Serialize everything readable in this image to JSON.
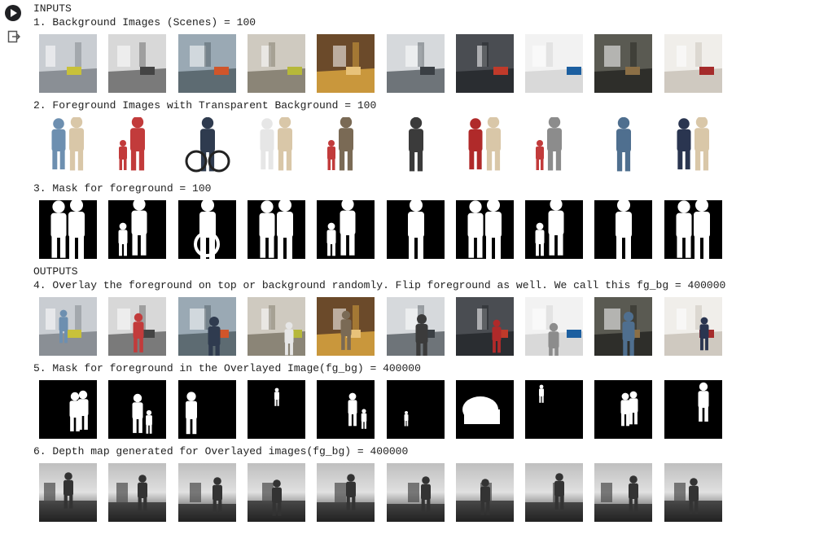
{
  "cell": {
    "run_icon": "play-circle-icon",
    "output_icon": "output-arrow-icon"
  },
  "output": {
    "inputs_header": "INPUTS",
    "outputs_header": "OUTPUTS",
    "sections": [
      {
        "id": "bg",
        "title": "1. Background Images (Scenes) = 100",
        "kind": "scene",
        "count": 10
      },
      {
        "id": "fg",
        "title": "2. Foreground Images with Transparent Background = 100",
        "kind": "people",
        "count": 10
      },
      {
        "id": "mask",
        "title": "3. Mask for foreground = 100",
        "kind": "mask",
        "count": 10
      },
      {
        "id": "fgbg",
        "title": "4. Overlay the foreground on top or background randomly. Flip foreground as well. We call this fg_bg = 400000",
        "kind": "overlay",
        "count": 10
      },
      {
        "id": "fgbgmask",
        "title": "5. Mask for foreground in the Overlayed Image(fg_bg) = 400000",
        "kind": "smallmask",
        "count": 10
      },
      {
        "id": "depth",
        "title": "6. Depth map generated for Overlayed images(fg_bg) = 400000",
        "kind": "depth",
        "count": 10
      }
    ]
  },
  "colors": {
    "text": "#212121",
    "mask_bg": "#000000",
    "mask_fg": "#ffffff"
  }
}
